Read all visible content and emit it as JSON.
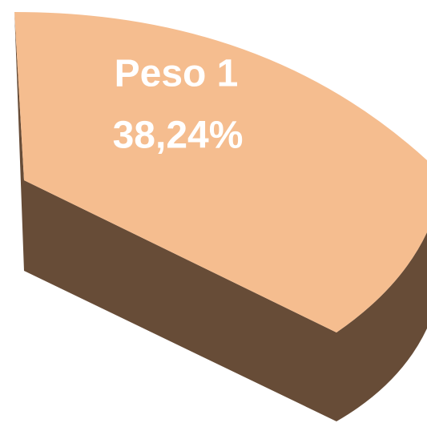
{
  "chart_data": {
    "type": "pie",
    "categories": [
      "Peso 1"
    ],
    "values": [
      38.24
    ],
    "value_labels": [
      "38,24%"
    ],
    "color": "#f5bd8f",
    "side_color": "#674c37"
  }
}
